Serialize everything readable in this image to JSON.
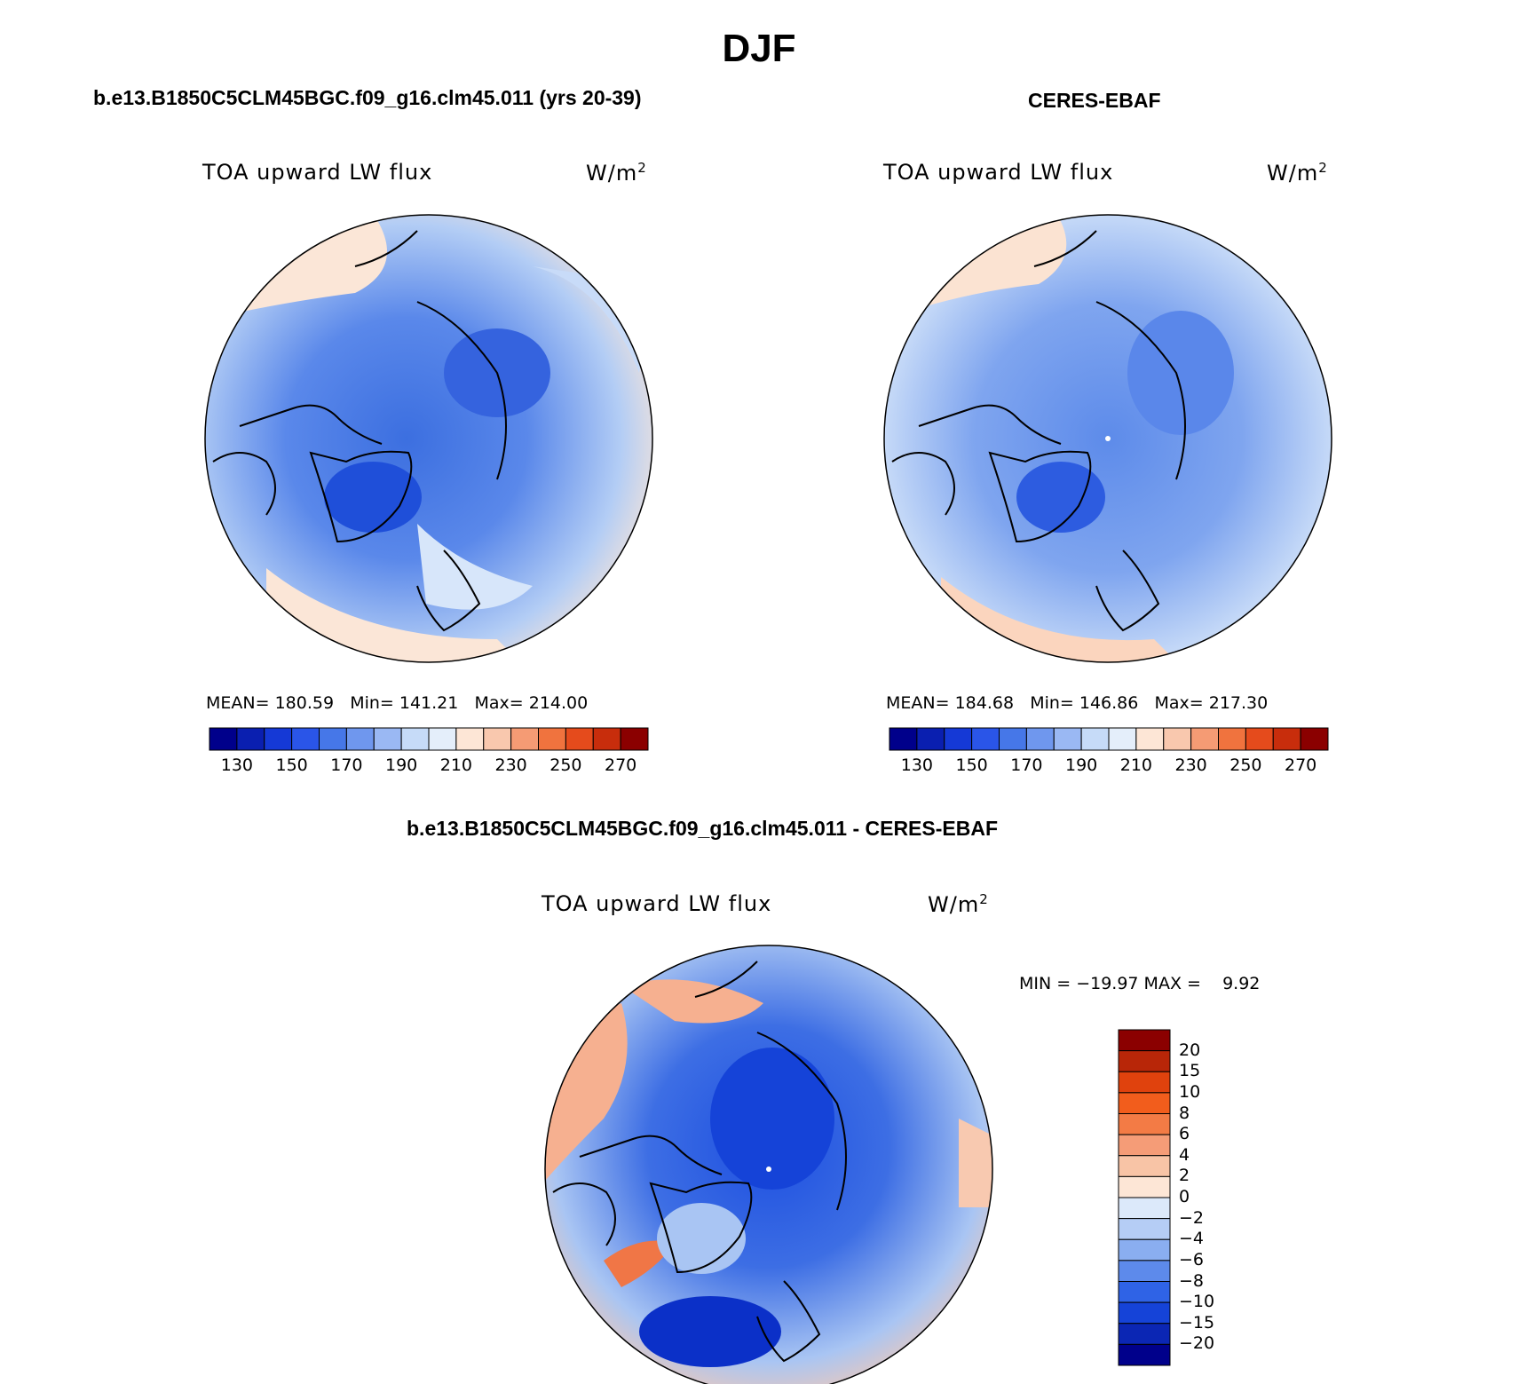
{
  "title": "DJF",
  "panels": [
    {
      "id": "model",
      "title": "b.e13.B1850C5CLM45BGC.f09_g16.clm45.011 (yrs 20-39)",
      "variable": "TOA upward LW flux",
      "units_base": "W/m",
      "units_exp": "2",
      "stats": {
        "mean_label": "MEAN=",
        "mean": "180.59",
        "min_label": "Min=",
        "min": "141.21",
        "max_label": "Max=",
        "max": "214.00"
      }
    },
    {
      "id": "obs",
      "title": "CERES-EBAF",
      "variable": "TOA upward LW flux",
      "units_base": "W/m",
      "units_exp": "2",
      "stats": {
        "mean_label": "MEAN=",
        "mean": "184.68",
        "min_label": "Min=",
        "min": "146.86",
        "max_label": "Max=",
        "max": "217.30"
      }
    },
    {
      "id": "diff",
      "title": "b.e13.B1850C5CLM45BGC.f09_g16.clm45.011 - CERES-EBAF",
      "variable": "TOA upward LW flux",
      "units_base": "W/m",
      "units_exp": "2",
      "stats_text": "MIN = −19.97 MAX =    9.92"
    }
  ],
  "colorbar_abs": {
    "colors": [
      "#00008b",
      "#0a1fb0",
      "#1539d6",
      "#2a55e8",
      "#4677e8",
      "#6f97ee",
      "#9ab8f3",
      "#c6dbf8",
      "#e4eefa",
      "#fde6d6",
      "#f9c8ae",
      "#f59b74",
      "#f0733e",
      "#e54b1c",
      "#c82d0c",
      "#8b0000"
    ],
    "labels": [
      "130",
      "150",
      "170",
      "190",
      "210",
      "230",
      "250",
      "270"
    ]
  },
  "colorbar_diff": {
    "colors": [
      "#8b0000",
      "#b82608",
      "#e0420d",
      "#f25d1c",
      "#f37b45",
      "#f59c77",
      "#f8c4a6",
      "#fde6d6",
      "#dce9fa",
      "#b5cdf5",
      "#8aaef0",
      "#5d8aeb",
      "#2f63e6",
      "#1543d8",
      "#0b26b4",
      "#00008b"
    ],
    "labels": [
      "20",
      "15",
      "10",
      "8",
      "6",
      "4",
      "2",
      "0",
      "−2",
      "−4",
      "−6",
      "−8",
      "−10",
      "−15",
      "−20"
    ]
  }
}
